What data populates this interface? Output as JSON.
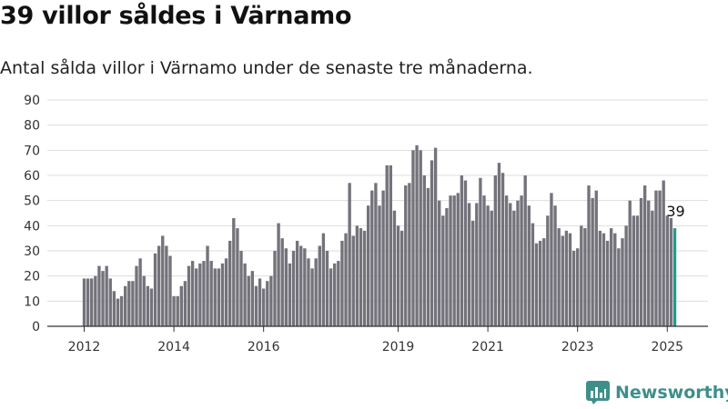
{
  "header": {
    "title": "39 villor såldes i Värnamo",
    "subtitle": "Antal sålda villor i Värnamo under de senaste tre månaderna."
  },
  "brand": {
    "name": "Newsworthy",
    "icon": "newsworthy-chart-icon",
    "color": "#3e8f8a"
  },
  "colors": {
    "bar": "#74737b",
    "highlight": "#229a8f",
    "grid": "#dddddd",
    "axis": "#333333"
  },
  "chart_data": {
    "type": "bar",
    "title": "39 villor såldes i Värnamo",
    "subtitle": "Antal sålda villor i Värnamo under de senaste tre månaderna.",
    "ylim": [
      0,
      90
    ],
    "yticks": [
      0,
      10,
      20,
      30,
      40,
      50,
      60,
      70,
      80,
      90
    ],
    "xticks": [
      "2012",
      "2014",
      "2016",
      "2019",
      "2021",
      "2023",
      "2025"
    ],
    "grid": true,
    "series": [
      {
        "values": [
          19,
          19,
          19,
          20,
          24,
          22,
          24,
          19,
          14,
          11,
          12,
          16,
          18,
          18,
          24,
          27,
          20,
          16,
          15,
          29,
          32,
          36,
          32,
          28,
          12,
          12,
          16,
          18,
          24,
          26,
          23,
          25,
          26,
          32,
          26,
          23,
          23,
          25,
          27,
          34,
          43,
          39,
          30,
          25,
          20,
          22,
          16,
          19,
          15,
          18,
          20,
          30,
          41,
          35,
          31,
          25,
          30,
          34,
          32,
          31,
          27,
          23,
          27,
          32,
          37,
          30,
          23,
          25,
          26,
          34,
          37,
          57,
          36,
          40,
          39,
          38,
          48,
          54,
          57,
          48,
          54,
          64,
          64,
          46,
          40,
          38,
          56,
          57,
          70,
          72,
          70,
          60,
          55,
          66,
          71,
          50,
          44,
          47,
          52,
          52,
          53,
          60,
          58,
          49,
          42,
          49,
          59,
          52,
          48,
          46,
          60,
          65,
          61,
          52,
          49,
          46,
          50,
          52,
          60,
          48,
          41,
          33,
          34,
          35,
          44,
          53,
          48,
          39,
          36,
          38,
          37,
          30,
          31,
          40,
          39,
          56,
          51,
          54,
          38,
          37,
          34,
          39,
          37,
          31,
          35,
          40,
          50,
          44,
          44,
          51,
          56,
          50,
          46,
          54,
          54,
          58,
          44,
          43,
          39
        ]
      }
    ],
    "data_labels": [
      {
        "text": "39"
      }
    ]
  }
}
